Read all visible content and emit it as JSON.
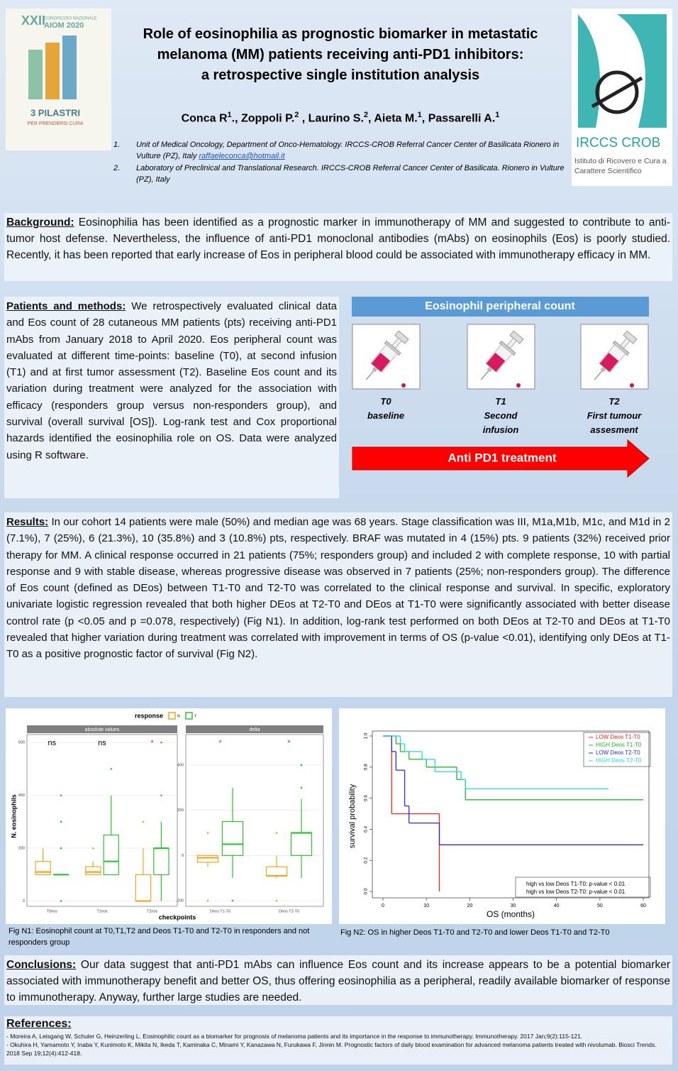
{
  "header": {
    "left_logo": {
      "edition": "XXII",
      "congress": "CONGRESSO NAZIONALE",
      "name": "AIOM 2020",
      "motto": "3 PILASTRI",
      "subtitle": "PER PRENDERSI CURA"
    },
    "title_lines": [
      "Role of eosinophilia as prognostic biomarker in metastatic",
      "melanoma (MM) patients receiving anti-PD1 inhibitors:",
      "a retrospective single institution analysis"
    ],
    "authors": [
      {
        "name": "Conca R",
        "sup": "1"
      },
      {
        "name": ".,  Zoppoli P.",
        "sup": "2"
      },
      {
        "name": " , Laurino S.",
        "sup": "2"
      },
      {
        "name": ", Aieta M.",
        "sup": "1"
      },
      {
        "name": ", Passarelli A.",
        "sup": "1"
      }
    ],
    "affiliations": [
      {
        "number": "1.",
        "text": "Unit of Medical Oncology, Department of Onco-Hematology. IRCCS-CROB Referral Cancer Center of Basilicata Rionero in Vulture (PZ), Italy",
        "email": "raffaeleconca@hotmail.it"
      },
      {
        "number": "2.",
        "text": "Laboratory of Preclinical and Translational Research. IRCCS-CROB Referral Cancer Center of Basilicata. Rionero in Vulture (PZ), Italy"
      }
    ],
    "right_logo": {
      "name": "IRCCS CROB",
      "subtitle": "Istituto di Ricovero e Cura a Carattere Scientifico"
    }
  },
  "background": {
    "heading": "Background:",
    "text": "Eosinophilia has been identified as a prognostic marker in immunotherapy of MM and suggested to contribute to anti-tumor host defense. Nevertheless, the influence of anti-PD1 monoclonal antibodies (mAbs) on eosinophils (Eos) is poorly studied. Recently, it has been reported that early increase of Eos in peripheral blood could be associated with immunotherapy efficacy in MM."
  },
  "methods": {
    "heading": "Patients and methods:",
    "text": "We retrospectively evaluated clinical data and Eos count of 28 cutaneous MM patients (pts) receiving anti-PD1 mAbs from January 2018 to April 2020. Eos peripheral count was evaluated at different time-points: baseline (T0), at second infusion (T1) and at first tumor assessment (T2). Baseline Eos count and its variation during treatment were analyzed for the association with efficacy (responders group versus non-responders group), and survival (overall survival [OS]). Log-rank test and Cox proportional hazards identified the eosinophilia role on OS. Data were analyzed using R software."
  },
  "diagram": {
    "title": "Eosinophil peripheral count",
    "timepoints": [
      {
        "label": "T0",
        "description": "baseline"
      },
      {
        "label": "T1",
        "description": "Second infusion"
      },
      {
        "label": "T2",
        "description": "First tumour assesment"
      }
    ],
    "arrow": "Anti PD1 treatment"
  },
  "results": {
    "heading": "Results:",
    "text": "In our cohort 14 patients were male (50%) and median age was 68 years. Stage classification was III, M1a,M1b, M1c, and M1d in 2 (7.1%), 7 (25%), 6 (21.3%), 10 (35.8%) and 3 (10.8%) pts, respectively. BRAF was mutated in 4 (15%) pts. 9 patients (32%) received prior therapy for MM. A clinical response occurred in 21 patients (75%; responders group) and included 2 with complete response, 10 with partial response and 9 with stable disease, whereas progressive disease was observed in 7 patients (25%; non-responders group). The difference of Eos count (defined as DEos) between T1-T0 and T2-T0 was correlated to the clinical response and survival. In specific, exploratory univariate logistic regression revealed that both higher DEos at T2-T0 and DEos at T1-T0 were significantly associated with better disease control rate (p <0.05 and p =0.078, respectively) (Fig N1). In addition, log-rank test performed on both DEos at T2-T0 and DEos at T1-T0 revealed that higher variation during treatment was correlated with improvement in terms of OS (p-value <0.01), identifying only DEos at T1-T0 as a positive prognostic factor of survival (Fig N2)."
  },
  "figure1": {
    "type": "box",
    "legend_title": "response",
    "ylabel": "N. eosinophils",
    "xlabel": "checkpoints",
    "series": [
      {
        "name": "N",
        "color": "#f5a41e"
      },
      {
        "name": "Y",
        "color": "#2ec42e"
      }
    ],
    "panels": [
      {
        "title": "absolute values",
        "categories": [
          "T0eos",
          "T1eos",
          "T2eos"
        ],
        "ylim": [
          -20,
          630
        ],
        "yticks": [
          0,
          200,
          400,
          600
        ],
        "annotations": [
          {
            "text": "ns",
            "color": "#000000"
          },
          {
            "text": "ns",
            "color": "#000000"
          },
          {
            "text": "*",
            "color": "#e8272a"
          }
        ],
        "boxes": [
          [
            {
              "min": 100,
              "q1": 100,
              "median": 110,
              "q3": 150,
              "max": 200,
              "outliers": []
            },
            {
              "min": 100,
              "q1": 100,
              "median": 100,
              "q3": 100,
              "max": 100,
              "outliers": [
                0,
                200,
                300,
                400
              ]
            }
          ],
          [
            {
              "min": 100,
              "q1": 100,
              "median": 110,
              "q3": 130,
              "max": 150,
              "outliers": [
                200
              ]
            },
            {
              "min": 100,
              "q1": 100,
              "median": 150,
              "q3": 250,
              "max": 400,
              "outliers": [
                500
              ]
            }
          ],
          [
            {
              "min": 0,
              "q1": 0,
              "median": 0,
              "q3": 100,
              "max": 200,
              "outliers": [
                300
              ]
            },
            {
              "min": 0,
              "q1": 100,
              "median": 200,
              "q3": 200,
              "max": 300,
              "outliers": [
                400,
                600
              ]
            }
          ]
        ]
      },
      {
        "title": "delta",
        "categories": [
          "Deos T1-T0",
          "Deos T2-T0"
        ],
        "ylim": [
          -225,
          535
        ],
        "yticks": [
          -200,
          0,
          200,
          400
        ],
        "annotations": [
          {
            "text": "*",
            "color": "#e8272a"
          },
          {
            "text": "*",
            "color": "#e8272a"
          }
        ],
        "boxes": [
          [
            {
              "min": -50,
              "q1": -30,
              "median": -10,
              "q3": 0,
              "max": 0,
              "outliers": [
                100,
                -200
              ]
            },
            {
              "min": -100,
              "q1": 0,
              "median": 50,
              "q3": 150,
              "max": 300,
              "outliers": [
                -200
              ]
            }
          ],
          [
            {
              "min": -100,
              "q1": -90,
              "median": -90,
              "q3": -50,
              "max": 0,
              "outliers": [
                100,
                -200
              ]
            },
            {
              "min": -100,
              "q1": 0,
              "median": 100,
              "q3": 100,
              "max": 250,
              "outliers": [
                300,
                400
              ]
            }
          ]
        ]
      }
    ],
    "caption": "Fig N1: Eosinophil count at T0,T1,T2 and Deos T1-T0 and T2-T0 in responders  and not responders group"
  },
  "figure2": {
    "type": "step",
    "xlabel": "OS (months)",
    "ylabel": "survival probability",
    "xlim": [
      -2.45,
      61.3
    ],
    "ylim": [
      -0.041,
      1.032
    ],
    "xticks": [
      0,
      10,
      20,
      30,
      40,
      50,
      60
    ],
    "yticks": [
      {
        "value": 0,
        "label": "0.0"
      },
      0.2,
      0.4,
      0.6,
      0.8,
      {
        "value": 1,
        "label": "1.0"
      }
    ],
    "series": [
      {
        "name": "LOW Deos T1-T0",
        "color": "#ff2020",
        "x": [
          0,
          2,
          13
        ],
        "values": [
          1,
          0.5,
          0
        ]
      },
      {
        "name": "HIGH Deos T1-T0",
        "color": "#22b922",
        "x": [
          0,
          3,
          4,
          6,
          10,
          17,
          19,
          60
        ],
        "values": [
          1,
          0.95,
          0.9,
          0.85,
          0.8,
          0.72,
          0.59,
          0.59
        ]
      },
      {
        "name": "LOW Deos T2-T0",
        "color": "#2a2ae0",
        "x": [
          0,
          2,
          3,
          5,
          6,
          13,
          60
        ],
        "values": [
          1,
          0.9,
          0.78,
          0.55,
          0.44,
          0.3,
          0.3
        ]
      },
      {
        "name": "HIGH Deos T2-T0",
        "color": "#22d8e8",
        "x": [
          0,
          4,
          5,
          9,
          12,
          18,
          19,
          52
        ],
        "values": [
          1,
          0.95,
          0.9,
          0.85,
          0.77,
          0.72,
          0.66,
          0.66
        ]
      }
    ],
    "pvalues": [
      "high vs low Deos T1-T0: p-value <  0.01",
      "high vs low Deos T2-T0: p-value <  0.01"
    ],
    "caption": "Fig N2: OS in higher Deos T1-T0 and T2-T0  and lower Deos T1-T0 and T2-T0"
  },
  "conclusions": {
    "heading": "Conclusions:",
    "text": "Our data suggest that anti-PD1 mAbs can influence Eos count and its increase appears to be a potential biomarker associated with immunotherapy benefit and better OS, thus offering eosinophilia as a peripheral, readily available biomarker of response to immunotherapy. Anyway, further large studies are needed."
  },
  "references": {
    "heading": "References:",
    "items": [
      "- Moreira A, Leisgang W, Schuler G, Heinzerling L. Eosinophilic count as a biomarker for prognosis of melanoma patients and its importance in the response to immunotherapy. Immunotherapy. 2017 Jan;9(2):115-121.",
      "- Okuhira H, Yamamoto Y, Inaba Y, Kunimoto K, Mikita N, Ikeda T, Kaminaka C, Minami Y, Kanazawa N, Furukawa F, Jinnin M. Prognostic factors of daily blood examination for advanced melanoma patients treated with nivolumab. Biosci Trends. 2018 Sep 19;12(4):412-418."
    ]
  }
}
